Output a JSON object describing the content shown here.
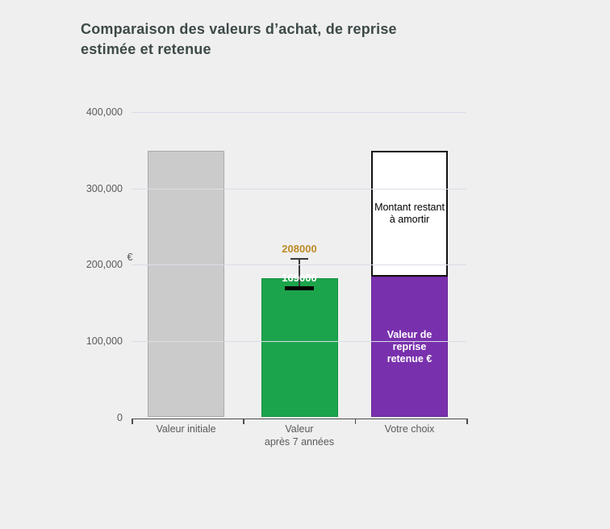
{
  "theme": {
    "background": "#efeff0",
    "title_color": "#3d4a47",
    "axis_text_color": "#5a5a5a",
    "gridline_color": "#d9dde6",
    "axis_line_color": "#4d4d4d"
  },
  "chart_data": {
    "type": "bar",
    "title": "Comparaison des valeurs d’achat, de reprise\nestimée et retenue",
    "ylim": [
      0,
      400000
    ],
    "yticks": [
      {
        "value": 0,
        "label": "0"
      },
      {
        "value": 100000,
        "label": "100,000"
      },
      {
        "value": 200000,
        "label": "200,000"
      },
      {
        "value": 300000,
        "label": "300,000"
      },
      {
        "value": 400000,
        "label": "400,000"
      }
    ],
    "y_unit": "€",
    "grid": true,
    "legend": "none",
    "bars": [
      {
        "label": "Valeur initiale",
        "value": 350000,
        "color": "#cbcbcb",
        "border_color": "#a9a9a9"
      },
      {
        "label": "Valeur\naprès 7 années",
        "value": 182000,
        "color": "#1ca44c",
        "border_color": "#169140",
        "whisker": {
          "high": 208000,
          "low": 169000,
          "high_label_color": "#bd8a26",
          "low_label_color": "#ffffff",
          "stem_color": "#3a3a3a",
          "low_cap_color": "#000000"
        }
      },
      {
        "label": "Votre choix",
        "segments": [
          {
            "name": "Valeur de reprise\nretenue €",
            "value": 185000,
            "color": "#7930ad",
            "border_color": "#6a2898",
            "text_color": "#ffffff"
          },
          {
            "name": "Montant restant\nà amortir",
            "value": 165000,
            "color": "#ffffff",
            "border_color": "#111111",
            "text_color": "#000000"
          }
        ]
      }
    ]
  }
}
